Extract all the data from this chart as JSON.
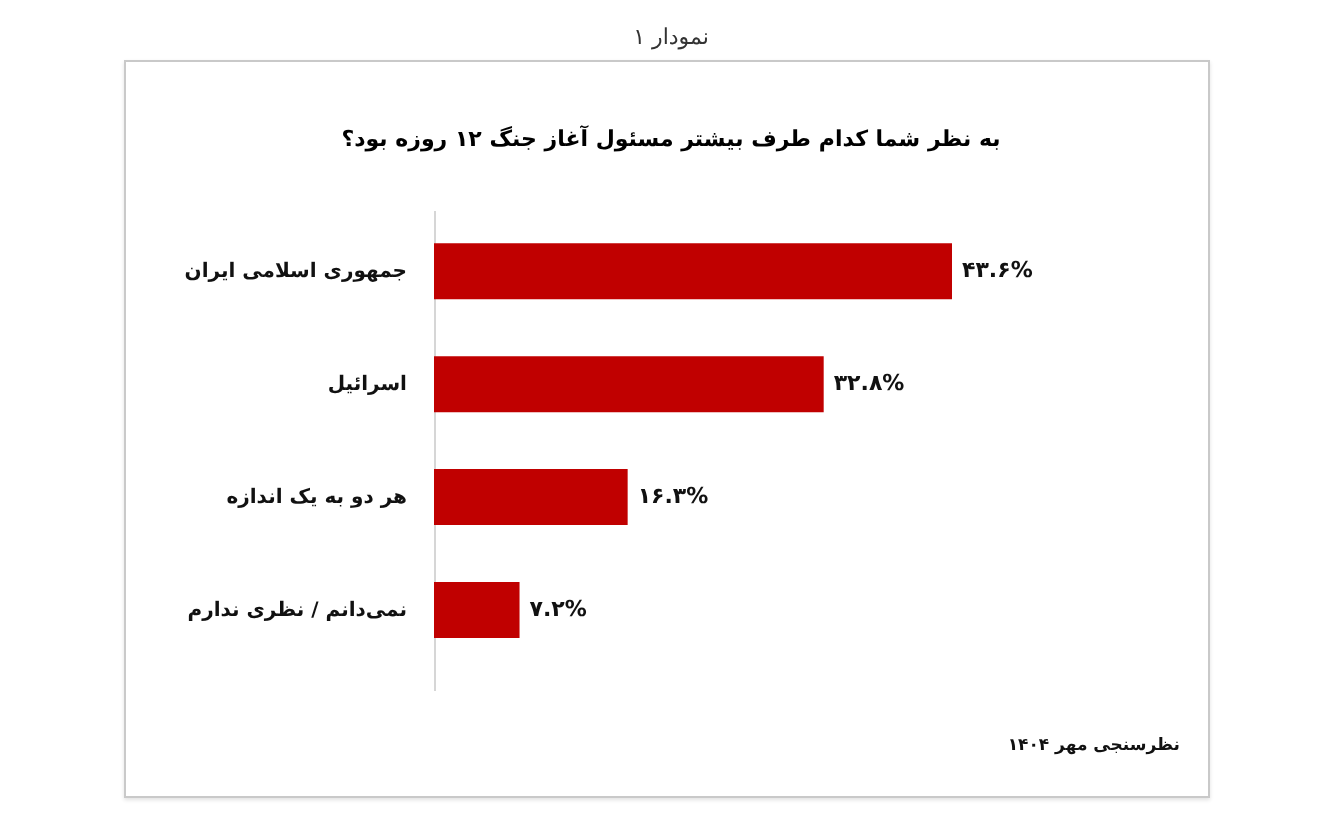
{
  "chart_data": {
    "type": "bar",
    "orientation": "horizontal",
    "title": "نمودار ۱",
    "subtitle": "به نظر شما کدام طرف بیشتر مسئول آغاز جنگ ۱۲ روزه بود؟",
    "categories": [
      "جمهوری اسلامی ایران",
      "اسرائیل",
      "هر دو به یک اندازه",
      "نمی‌دانم / نظری ندارم"
    ],
    "values": [
      43.6,
      32.8,
      16.3,
      7.2
    ],
    "value_labels": [
      "۴۳.۶%",
      "۳۲.۸%",
      "۱۶.۳%",
      "۷.۲%"
    ],
    "color": "#c00000",
    "annotations": [
      "نظرسنجی مهر ۱۴۰۴"
    ]
  }
}
